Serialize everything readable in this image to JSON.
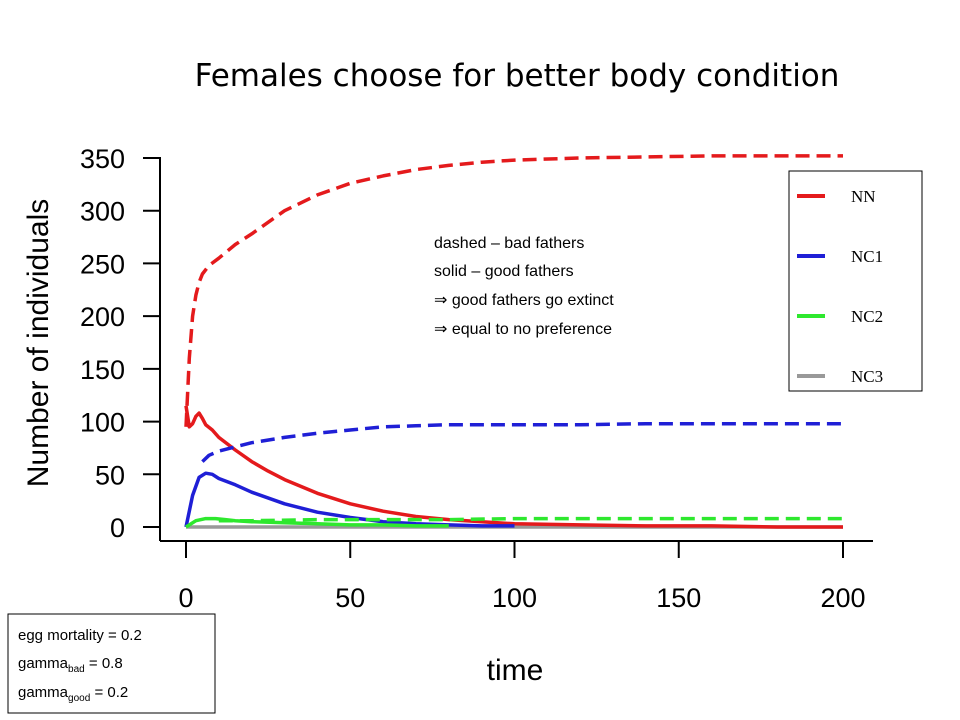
{
  "chart_data": {
    "type": "line",
    "title": "Females choose for better body condition",
    "xlabel": "time",
    "ylabel": "Number of individuals",
    "xlim": [
      0,
      200
    ],
    "ylim": [
      0,
      350
    ],
    "x_ticks": [
      "0",
      "50",
      "100",
      "150",
      "200"
    ],
    "y_ticks": [
      "0",
      "50",
      "100",
      "150",
      "200",
      "250",
      "300",
      "350"
    ],
    "legend_position": "top-right",
    "legend": [
      {
        "label": "NN",
        "color": "#e41a1c"
      },
      {
        "label": "NC1",
        "color": "#1f1fd6"
      },
      {
        "label": "NC2",
        "color": "#2ee82e"
      },
      {
        "label": "NC3",
        "color": "#999999"
      }
    ],
    "series": [
      {
        "name": "NN",
        "style": "dashed",
        "color": "#e41a1c",
        "x": [
          0,
          1,
          2,
          3,
          4,
          5,
          7,
          10,
          15,
          20,
          30,
          40,
          50,
          60,
          70,
          80,
          90,
          100,
          120,
          140,
          160,
          180,
          200
        ],
        "y": [
          95,
          160,
          200,
          220,
          232,
          240,
          248,
          255,
          268,
          278,
          300,
          315,
          326,
          333,
          339,
          343,
          346,
          348,
          350,
          351,
          352,
          352,
          352
        ]
      },
      {
        "name": "NN",
        "style": "solid",
        "color": "#e41a1c",
        "x": [
          0,
          1,
          2,
          3,
          4,
          5,
          6,
          8,
          10,
          15,
          20,
          25,
          30,
          40,
          50,
          60,
          70,
          80,
          90,
          100,
          120,
          140,
          160,
          180,
          200
        ],
        "y": [
          115,
          95,
          98,
          105,
          108,
          103,
          97,
          92,
          85,
          73,
          62,
          53,
          45,
          32,
          22,
          15,
          10,
          7,
          5,
          3,
          2,
          1,
          1,
          0,
          0
        ]
      },
      {
        "name": "NC1",
        "style": "dashed",
        "color": "#1f1fd6",
        "x": [
          5,
          7,
          10,
          15,
          20,
          30,
          40,
          50,
          60,
          70,
          80,
          100,
          120,
          140,
          160,
          180,
          200
        ],
        "y": [
          62,
          68,
          72,
          76,
          80,
          85,
          89,
          92,
          95,
          96,
          97,
          97,
          97,
          98,
          98,
          98,
          98
        ]
      },
      {
        "name": "NC1",
        "style": "solid",
        "color": "#1f1fd6",
        "x": [
          0,
          2,
          4,
          6,
          8,
          10,
          15,
          20,
          30,
          40,
          50,
          60,
          70,
          80,
          90,
          100
        ],
        "y": [
          0,
          30,
          47,
          51,
          50,
          46,
          40,
          33,
          22,
          14,
          9,
          5,
          3,
          2,
          1,
          1
        ]
      },
      {
        "name": "NC2",
        "style": "dashed",
        "color": "#2ee82e",
        "x": [
          10,
          20,
          40,
          60,
          80,
          100,
          120,
          140,
          160,
          180,
          200
        ],
        "y": [
          6,
          6,
          7,
          7,
          7,
          8,
          8,
          8,
          8,
          8,
          8
        ]
      },
      {
        "name": "NC2",
        "style": "solid",
        "color": "#2ee82e",
        "x": [
          0,
          3,
          6,
          9,
          12,
          15,
          20,
          30,
          40,
          50,
          60,
          70,
          80
        ],
        "y": [
          0,
          6,
          8,
          8,
          7,
          6,
          5,
          4,
          3,
          2,
          2,
          1,
          1
        ]
      },
      {
        "name": "NC3",
        "style": "solid",
        "color": "#999999",
        "x": [
          0,
          200
        ],
        "y": [
          0,
          0
        ]
      }
    ],
    "annotations": [
      "dashed – bad fathers",
      "solid – good fathers",
      "⇒  good fathers go extinct",
      "⇒  equal to no preference"
    ],
    "parameters": {
      "egg_mortality": "egg mortality = 0.2",
      "gamma_bad_base": "gamma",
      "gamma_bad_sub": "bad",
      "gamma_bad_value": " = 0.8",
      "gamma_good_base": "gamma",
      "gamma_good_sub": "good",
      "gamma_good_value": " = 0.2"
    }
  }
}
